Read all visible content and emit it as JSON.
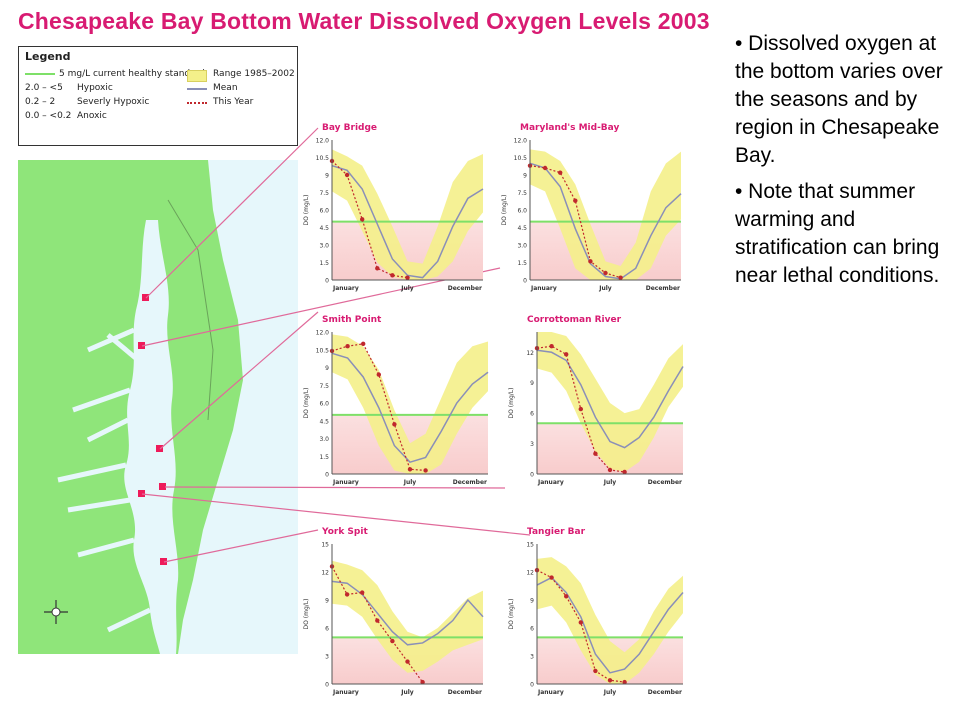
{
  "title": "Chesapeake Bay Bottom Water Dissolved Oxygen Levels 2003",
  "legend": {
    "title": "Legend",
    "levels": [
      {
        "label": "5 mg/L current healthy standard",
        "kind": "line",
        "color": "#7ee068"
      },
      {
        "range": "2.0 – <5",
        "label": "Hypoxic"
      },
      {
        "range": "0.2 – 2",
        "label": "Severly Hypoxic"
      },
      {
        "range": "0.0 – <0.2",
        "label": "Anoxic"
      }
    ],
    "series": [
      {
        "label": "Range 1985–2002",
        "kind": "band",
        "color": "#f4f08a"
      },
      {
        "label": "Mean",
        "kind": "line",
        "color": "#8a8fb8"
      },
      {
        "label": "This Year",
        "kind": "dots",
        "color": "#c0282d"
      }
    ]
  },
  "bullets": [
    "• Dissolved oxygen at the bottom varies over the seasons and by region in Chesapeake Bay.",
    "• Note that summer warming and stratification can bring near lethal conditions."
  ],
  "colors": {
    "title": "#d81b72",
    "land": "#8fe57a",
    "water": "#e6f7fb",
    "band": "#f4f08a",
    "mean": "#8a8fb8",
    "this_year": "#c0282d",
    "standard": "#7ee068",
    "hypoxic_zone": "#f8cccc",
    "connector": "#e06a9a"
  },
  "chart_data": [
    {
      "type": "line",
      "title": "Bay Bridge",
      "ylabel": "DO (mg/L)",
      "x_ticks": [
        "January",
        "July",
        "December"
      ],
      "y_ticks": [
        "12.0",
        "10.5",
        "9",
        "7.5",
        "6.0",
        "4.5",
        "3.0",
        "1.5",
        "0"
      ],
      "ylim": [
        0,
        12
      ],
      "standard": 5,
      "range_low": [
        7.6,
        6.8,
        4.2,
        1.5,
        0.3,
        0.0,
        0.0,
        0.3,
        1.6,
        4.2,
        5.8
      ],
      "range_high": [
        11.2,
        10.6,
        9.8,
        7.4,
        4.6,
        1.6,
        1.4,
        4.6,
        8.4,
        10.2,
        10.8
      ],
      "mean": [
        9.8,
        9.4,
        7.8,
        4.8,
        1.8,
        0.4,
        0.2,
        1.6,
        4.6,
        7.0,
        7.8
      ],
      "this_year": [
        10.2,
        9.0,
        5.2,
        1.0,
        0.4,
        0.2
      ]
    },
    {
      "type": "line",
      "title": "Maryland's Mid-Bay",
      "ylabel": "DO (mg/L)",
      "x_ticks": [
        "January",
        "July",
        "December"
      ],
      "y_ticks": [
        "12.0",
        "10.5",
        "9",
        "7.5",
        "6.0",
        "4.5",
        "3.0",
        "1.5",
        "0"
      ],
      "ylim": [
        0,
        12
      ],
      "standard": 5,
      "range_low": [
        8.2,
        7.6,
        4.4,
        1.0,
        0.0,
        0.0,
        0.0,
        0.0,
        1.0,
        3.8,
        5.2
      ],
      "range_high": [
        11.2,
        11.0,
        10.2,
        8.2,
        4.8,
        1.6,
        1.2,
        3.2,
        7.6,
        10.0,
        11.0
      ],
      "mean": [
        10.0,
        9.6,
        8.0,
        4.4,
        1.4,
        0.3,
        0.1,
        1.0,
        3.8,
        6.2,
        7.4
      ],
      "this_year": [
        9.8,
        9.6,
        9.2,
        6.8,
        1.6,
        0.6,
        0.2
      ]
    },
    {
      "type": "line",
      "title": "Smith Point",
      "ylabel": "DO (mg/L)",
      "x_ticks": [
        "January",
        "July",
        "December"
      ],
      "y_ticks": [
        "12.0",
        "10.5",
        "9",
        "7.5",
        "6.0",
        "4.5",
        "3.0",
        "1.5",
        "0"
      ],
      "ylim": [
        0,
        12
      ],
      "standard": 5,
      "range_low": [
        8.6,
        8.0,
        5.6,
        2.4,
        0.3,
        0.0,
        0.0,
        0.8,
        3.4,
        5.6,
        7.0
      ],
      "range_high": [
        11.8,
        11.6,
        10.8,
        8.8,
        5.4,
        2.6,
        3.4,
        6.4,
        9.4,
        10.8,
        11.2
      ],
      "mean": [
        10.2,
        9.8,
        8.2,
        5.6,
        2.4,
        1.0,
        1.4,
        3.6,
        6.0,
        7.6,
        8.6
      ],
      "this_year": [
        10.4,
        10.8,
        11.0,
        8.4,
        4.2,
        0.4,
        0.3
      ]
    },
    {
      "type": "line",
      "title": "Corrottoman River",
      "ylabel": "DO (mg/L)",
      "x_ticks": [
        "January",
        "July",
        "December"
      ],
      "y_ticks": [
        "12",
        "9",
        "6",
        "3",
        "0"
      ],
      "ylim": [
        0,
        14
      ],
      "standard": 5,
      "range_low": [
        10.4,
        10.0,
        8.2,
        5.0,
        2.2,
        0.5,
        0.2,
        1.2,
        3.6,
        6.6,
        8.6
      ],
      "range_high": [
        14.0,
        14.0,
        13.6,
        11.8,
        9.4,
        7.0,
        6.0,
        6.4,
        8.8,
        11.4,
        12.8
      ],
      "mean": [
        12.2,
        12.0,
        11.2,
        8.8,
        5.6,
        3.2,
        2.6,
        3.6,
        5.6,
        8.2,
        10.6
      ],
      "this_year": [
        12.4,
        12.6,
        11.8,
        6.4,
        2.0,
        0.4,
        0.2
      ]
    },
    {
      "type": "line",
      "title": "York Spit",
      "ylabel": "DO (mg/L)",
      "x_ticks": [
        "January",
        "July",
        "December"
      ],
      "y_ticks": [
        "15",
        "12",
        "9",
        "6",
        "3",
        "0"
      ],
      "ylim": [
        0,
        15
      ],
      "standard": 5,
      "range_low": [
        8.6,
        8.4,
        7.2,
        4.8,
        2.6,
        1.2,
        1.4,
        2.4,
        3.6,
        4.2,
        4.8
      ],
      "range_high": [
        13.2,
        12.8,
        12.2,
        10.6,
        7.8,
        5.6,
        5.0,
        6.0,
        7.6,
        9.2,
        10.0
      ],
      "mean": [
        11.0,
        10.8,
        9.6,
        7.6,
        5.6,
        4.2,
        4.4,
        5.4,
        6.8,
        9.0,
        7.2
      ],
      "this_year": [
        12.6,
        9.6,
        9.8,
        6.8,
        4.6,
        2.4,
        0.2
      ]
    },
    {
      "type": "line",
      "title": "Tangier Bar",
      "ylabel": "DO (mg/L)",
      "x_ticks": [
        "January",
        "July",
        "December"
      ],
      "y_ticks": [
        "15",
        "12",
        "9",
        "6",
        "3",
        "0"
      ],
      "ylim": [
        0,
        15
      ],
      "standard": 5,
      "range_low": [
        8.0,
        8.4,
        6.6,
        3.6,
        1.0,
        0.0,
        0.0,
        1.2,
        3.2,
        5.6,
        7.6
      ],
      "range_high": [
        13.4,
        13.6,
        12.6,
        10.8,
        7.4,
        4.6,
        3.4,
        4.8,
        7.8,
        10.2,
        11.6
      ],
      "mean": [
        10.6,
        11.4,
        9.8,
        7.2,
        3.2,
        1.2,
        1.6,
        3.2,
        5.6,
        8.0,
        9.8
      ],
      "this_year": [
        12.2,
        11.4,
        9.4,
        6.6,
        1.4,
        0.4,
        0.2
      ]
    }
  ]
}
